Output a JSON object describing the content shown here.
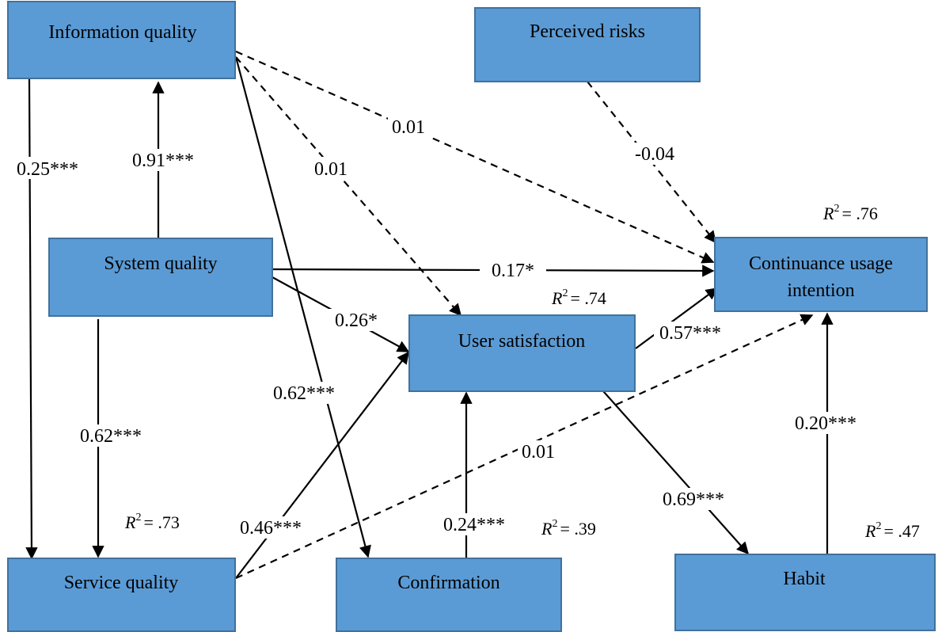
{
  "constructs": {
    "information_quality": "Information quality",
    "perceived_risks": "Perceived risks",
    "system_quality": "System quality",
    "continuance_usage_intention_line1": "Continuance usage",
    "continuance_usage_intention_line2": "intention",
    "user_satisfaction": "User satisfaction",
    "service_quality": "Service quality",
    "confirmation": "Confirmation",
    "habit": "Habit"
  },
  "path_coefficients": {
    "iq_to_sq": "0.25***",
    "sys_to_iq": "0.91***",
    "iq_to_cui": "0.01",
    "iq_to_us": "0.01",
    "risk_to_cui": "-0.04",
    "sys_to_cui": "0.17*",
    "sys_to_us": "0.26*",
    "iq_to_conf": "0.62***",
    "sys_to_sq": "0.62***",
    "us_to_cui": "0.57***",
    "sq_to_cui": "0.01",
    "sq_to_us": "0.46***",
    "conf_to_us": "0.24***",
    "us_to_habit": "0.69***",
    "habit_to_cui": "0.20***"
  },
  "r_squared": {
    "cui": "= .76",
    "us": "= .74",
    "sq": "= .73",
    "conf": "= .39",
    "habit": "= .47"
  },
  "r_squared_symbol": "R",
  "r_squared_superscript": "2",
  "colors": {
    "box_fill": "#5b9bd5",
    "box_border": "#41719c",
    "line": "#000000"
  }
}
